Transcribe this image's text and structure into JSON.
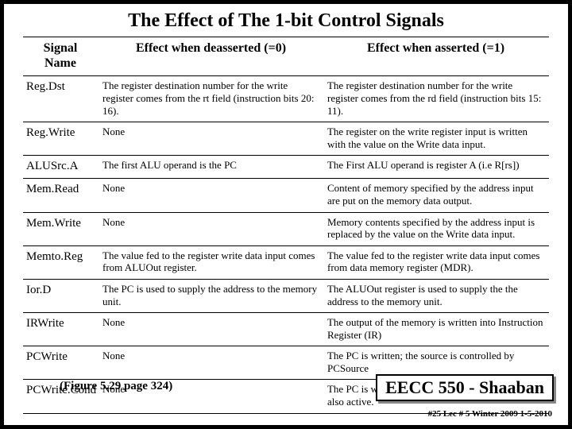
{
  "title": "The Effect of The 1-bit Control Signals",
  "headers": {
    "c1": "Signal Name",
    "c2": "Effect when deasserted (=0)",
    "c3": "Effect when asserted (=1)"
  },
  "rows": [
    {
      "signal": "Reg.Dst",
      "de": "The register destination number for the write register comes from the rt field (instruction bits 20: 16).",
      "as": "The register destination number for the write register comes from the rd field (instruction bits 15: 11)."
    },
    {
      "signal": "Reg.Write",
      "de": "None",
      "as": "The register on the write register input is written with the value on the Write data input."
    },
    {
      "signal": "ALUSrc.A",
      "de": "The first ALU operand is the PC",
      "as": "The First ALU operand is register A (i.e R[rs])"
    },
    {
      "signal": "Mem.Read",
      "de": "None",
      "as": "Content of memory specified by the address input are put on the memory data output."
    },
    {
      "signal": "Mem.Write",
      "de": "None",
      "as": "Memory contents specified by the address input is replaced by the value on the Write data input."
    },
    {
      "signal": "Memto.Reg",
      "de": "The value fed to the register write data input comes from ALUOut register.",
      "as": "The value fed to the register write data input comes from data memory register (MDR)."
    },
    {
      "signal": "Ior.D",
      "de": "The PC is used to supply the address to the memory unit.",
      "as": "The ALUOut register is used to supply the the address to the memory unit."
    },
    {
      "signal": "IRWrite",
      "de": "None",
      "as": "The output of the memory is written into Instruction Register (IR)"
    },
    {
      "signal": "PCWrite",
      "de": "None",
      "as": "The PC is written; the source is controlled by PCSource"
    },
    {
      "signal": "PCWrite.Cond",
      "de": "None",
      "as": "The PC is written if the Zero output of the ALU is also active."
    }
  ],
  "figref": "(Figure 5.29 page 324)",
  "course": "EECC 550 - Shaaban",
  "lec": "#25 Lec # 5 Winter 2009 1-5-2010"
}
